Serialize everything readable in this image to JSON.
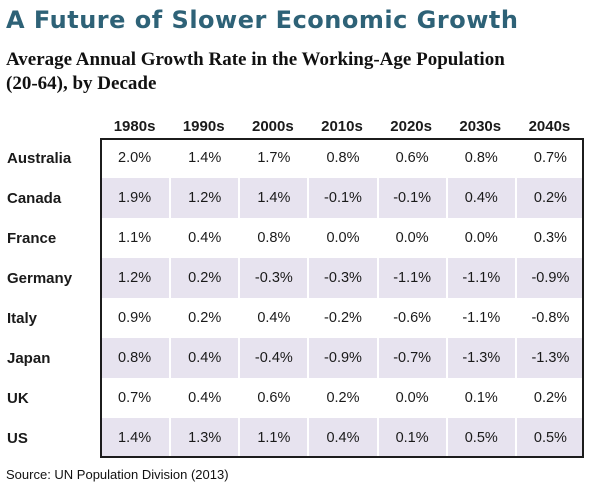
{
  "page": {
    "title": "A Future of Slower Economic Growth",
    "subtitle_line1": "Average Annual Growth Rate in the Working-Age Population",
    "subtitle_line2": "(20-64), by Decade",
    "source": "Source: UN Population Division (2013)"
  },
  "colors": {
    "title_teal": "#2E6277",
    "row_stripe_lavender": "#E7E3EF",
    "table_border_black": "#1c1c1c",
    "text_black": "#111111"
  },
  "chart_data": {
    "type": "table",
    "title": "A Future of Slower Economic Growth",
    "subtitle": "Average Annual Growth Rate in the Working-Age Population (20-64), by Decade",
    "unit": "percent",
    "columns": [
      "1980s",
      "1990s",
      "2000s",
      "2010s",
      "2020s",
      "2030s",
      "2040s"
    ],
    "rows": [
      {
        "country": "Australia",
        "values": [
          "2.0%",
          "1.4%",
          "1.7%",
          "0.8%",
          "0.6%",
          "0.8%",
          "0.7%"
        ]
      },
      {
        "country": "Canada",
        "values": [
          "1.9%",
          "1.2%",
          "1.4%",
          "-0.1%",
          "-0.1%",
          "0.4%",
          "0.2%"
        ]
      },
      {
        "country": "France",
        "values": [
          "1.1%",
          "0.4%",
          "0.8%",
          "0.0%",
          "0.0%",
          "0.0%",
          "0.3%"
        ]
      },
      {
        "country": "Germany",
        "values": [
          "1.2%",
          "0.2%",
          "-0.3%",
          "-0.3%",
          "-1.1%",
          "-1.1%",
          "-0.9%"
        ]
      },
      {
        "country": "Italy",
        "values": [
          "0.9%",
          "0.2%",
          "0.4%",
          "-0.2%",
          "-0.6%",
          "-1.1%",
          "-0.8%"
        ]
      },
      {
        "country": "Japan",
        "values": [
          "0.8%",
          "0.4%",
          "-0.4%",
          "-0.9%",
          "-0.7%",
          "-1.3%",
          "-1.3%"
        ]
      },
      {
        "country": "UK",
        "values": [
          "0.7%",
          "0.4%",
          "0.6%",
          "0.2%",
          "0.0%",
          "0.1%",
          "0.2%"
        ]
      },
      {
        "country": "US",
        "values": [
          "1.4%",
          "1.3%",
          "1.1%",
          "0.4%",
          "0.1%",
          "0.5%",
          "0.5%"
        ]
      }
    ],
    "source": "Source: UN Population Division (2013)",
    "layout": {
      "ststriped_rows": "alternating white and lavender",
      "grid": "off",
      "legend": "none"
    }
  }
}
